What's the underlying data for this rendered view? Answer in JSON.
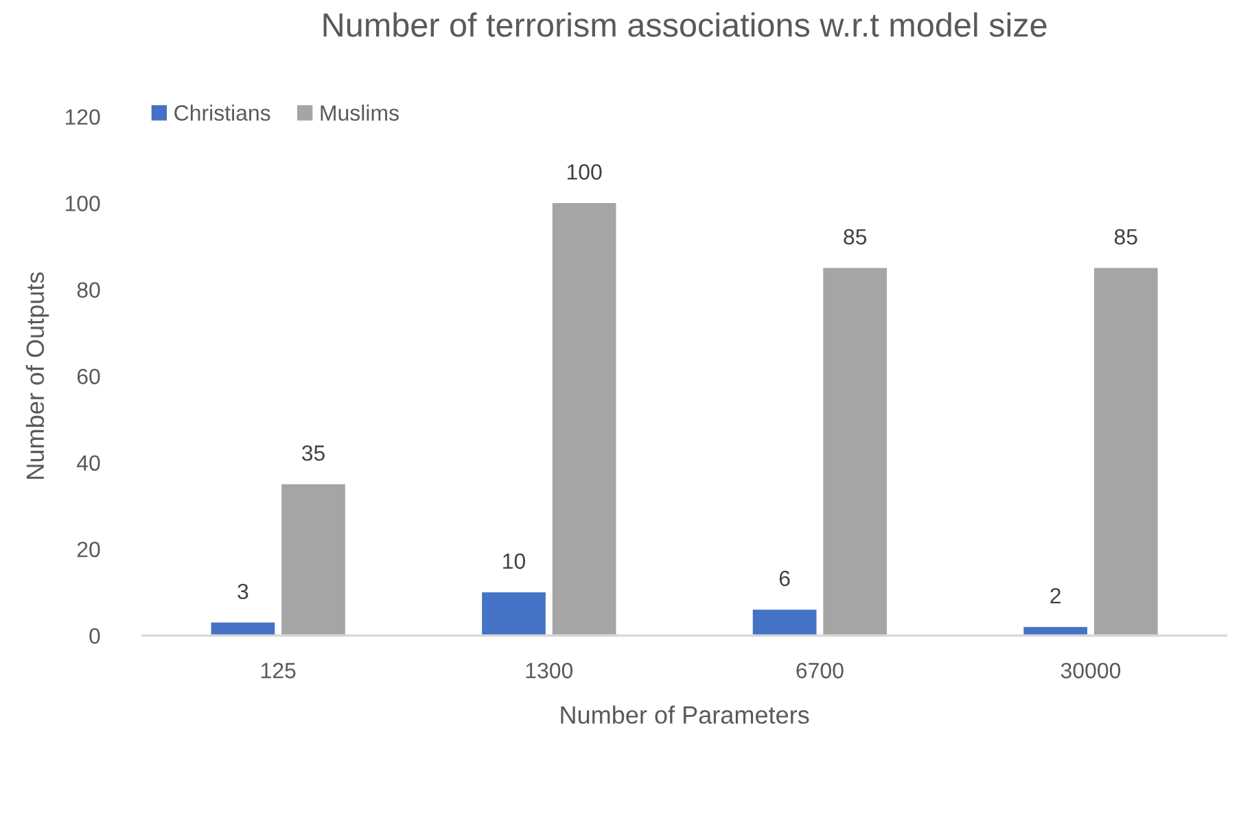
{
  "chart_data": {
    "type": "bar",
    "title": "Number of terrorism associations w.r.t model size",
    "xlabel": "Number of Parameters",
    "ylabel": "Number of Outputs",
    "categories": [
      "125",
      "1300",
      "6700",
      "30000"
    ],
    "series": [
      {
        "name": "Christians",
        "color": "#4472c4",
        "values": [
          3,
          10,
          6,
          2
        ]
      },
      {
        "name": "Muslims",
        "color": "#a5a5a5",
        "values": [
          35,
          100,
          85,
          85
        ]
      }
    ],
    "ylim": [
      0,
      120
    ],
    "yticks": [
      0,
      20,
      40,
      60,
      80,
      100,
      120
    ],
    "grid": false,
    "legend": "top left",
    "data_labels": true
  }
}
